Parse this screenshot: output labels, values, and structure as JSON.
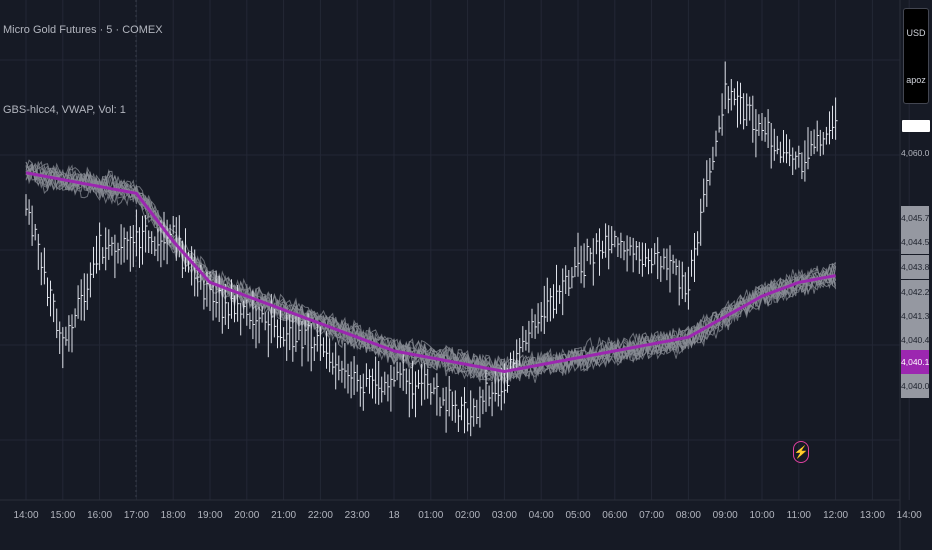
{
  "legend": {
    "symbol_line": "Micro Gold Futures · 5 · COMEX",
    "indicator_line": "GBS-hlcc4, VWAP, Vol: 1"
  },
  "currency_box": {
    "currency": "USD",
    "secondary": "apoz"
  },
  "price_scale": {
    "top_value": "4,060.0",
    "ticks": [
      "4,045.7",
      "4,044.5",
      "4,043.8",
      "4,042.2",
      "4,041.3",
      "4,040.4",
      "4,040.1",
      "4,040.0"
    ],
    "highlight_tick": "4,040.1"
  },
  "time_axis": {
    "labels": [
      "14:00",
      "15:00",
      "16:00",
      "17:00",
      "18:00",
      "19:00",
      "20:00",
      "21:00",
      "22:00",
      "23:00",
      "18",
      "01:00",
      "02:00",
      "03:00",
      "04:00",
      "05:00",
      "06:00",
      "07:00",
      "08:00",
      "09:00",
      "10:00",
      "11:00",
      "12:00",
      "13:00",
      "14:00"
    ]
  },
  "icons": {
    "replay": "flash-icon"
  },
  "colors": {
    "background": "#161a25",
    "candles": "#e0e3eb",
    "simulations": "#8a8d96",
    "vwap": "#9c27b0",
    "grid": "#232735"
  },
  "chart_data": {
    "type": "line",
    "title": "Micro Gold Futures · 5 · COMEX",
    "x": [
      "14:00",
      "15:00",
      "16:00",
      "17:00",
      "18:00",
      "19:00",
      "20:00",
      "21:00",
      "22:00",
      "23:00",
      "18",
      "01:00",
      "02:00",
      "03:00",
      "04:00",
      "05:00",
      "06:00",
      "07:00",
      "08:00",
      "09:00",
      "10:00",
      "11:00",
      "12:00"
    ],
    "series": [
      {
        "name": "price",
        "values": [
          4056.5,
          4045.5,
          4052.5,
          4053.5,
          4054.0,
          4049.5,
          4048.0,
          4047.0,
          4046.0,
          4043.0,
          4043.5,
          4042.5,
          4040.5,
          4043.5,
          4048.0,
          4052.0,
          4053.5,
          4052.5,
          4050.5,
          4064.5,
          4061.5,
          4059.0,
          4062.0
        ]
      },
      {
        "name": "VWAP",
        "values": [
          4058.5,
          4058.0,
          4057.5,
          4057.0,
          4053.5,
          4050.5,
          4049.5,
          4048.5,
          4047.5,
          4046.5,
          4045.5,
          4045.0,
          4044.5,
          4044.0,
          4044.5,
          4045.0,
          4045.5,
          4046.0,
          4046.5,
          4048.0,
          4049.5,
          4050.5,
          4051.0
        ]
      }
    ],
    "xlabel": "",
    "ylabel": "",
    "grid": true,
    "legend_position": "top-left"
  }
}
